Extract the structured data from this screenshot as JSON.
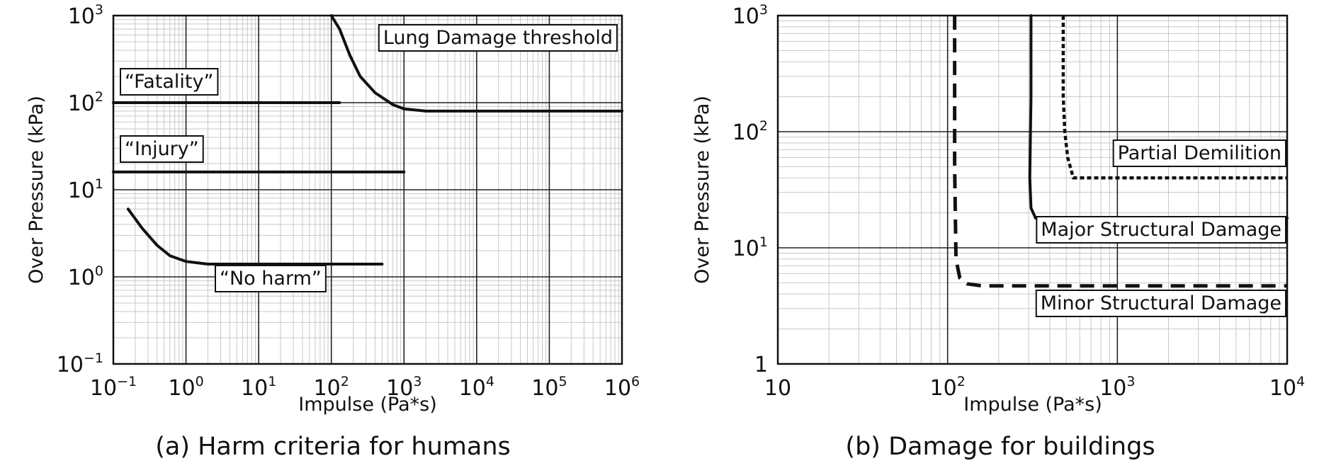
{
  "chart_data": [
    {
      "type": "line",
      "caption": "(a) Harm criteria for humans",
      "xlabel": "Impulse (Pa*s)",
      "ylabel": "Over Pressure (kPa)",
      "x_scale": "log",
      "y_scale": "log",
      "xlim": [
        0.1,
        1000000
      ],
      "ylim": [
        0.1,
        1000
      ],
      "grid": true,
      "x_ticks": [
        {
          "base": "10",
          "exp": "−1"
        },
        {
          "base": "10",
          "exp": "0"
        },
        {
          "base": "10",
          "exp": "1"
        },
        {
          "base": "10",
          "exp": "2"
        },
        {
          "base": "10",
          "exp": "3"
        },
        {
          "base": "10",
          "exp": "4"
        },
        {
          "base": "10",
          "exp": "5"
        },
        {
          "base": "10",
          "exp": "6"
        }
      ],
      "y_ticks": [
        {
          "base": "10",
          "exp": "−1"
        },
        {
          "base": "10",
          "exp": "0"
        },
        {
          "base": "10",
          "exp": "1"
        },
        {
          "base": "10",
          "exp": "2"
        },
        {
          "base": "10",
          "exp": "3"
        }
      ],
      "series": [
        {
          "label": "Lung Damage threshold",
          "style": "solid",
          "x": [
            100,
            130,
            180,
            250,
            400,
            700,
            1000,
            2000,
            5000,
            10000,
            100000,
            1000000
          ],
          "y": [
            1000,
            700,
            350,
            200,
            130,
            95,
            85,
            80,
            80,
            80,
            80,
            80
          ]
        },
        {
          "label": "“Fatality”",
          "style": "solid",
          "x": [
            0.1,
            130
          ],
          "y": [
            100,
            100
          ]
        },
        {
          "label": "“Injury”",
          "style": "solid",
          "x": [
            0.1,
            1000
          ],
          "y": [
            16,
            16
          ]
        },
        {
          "label": "“No harm”",
          "style": "solid",
          "x": [
            0.16,
            0.25,
            0.4,
            0.6,
            1.0,
            2.0,
            10,
            100,
            500
          ],
          "y": [
            6.0,
            3.6,
            2.3,
            1.75,
            1.5,
            1.4,
            1.4,
            1.4,
            1.4
          ]
        }
      ]
    },
    {
      "type": "line",
      "caption": "(b) Damage for buildings",
      "xlabel": "Impulse (Pa*s)",
      "ylabel": "Over Pressure (kPa)",
      "x_scale": "log",
      "y_scale": "log",
      "xlim": [
        10,
        10000
      ],
      "ylim": [
        1,
        1000
      ],
      "grid": true,
      "x_ticks": [
        {
          "base": "10",
          "exp": ""
        },
        {
          "base": "10",
          "exp": "2"
        },
        {
          "base": "10",
          "exp": "3"
        },
        {
          "base": "10",
          "exp": "4"
        }
      ],
      "y_ticks": [
        {
          "base": "1",
          "exp": ""
        },
        {
          "base": "10",
          "exp": "1"
        },
        {
          "base": "10",
          "exp": "2"
        },
        {
          "base": "10",
          "exp": "3"
        }
      ],
      "series": [
        {
          "label": "Partial Demilition",
          "style": "dotted",
          "x": [
            480,
            480,
            490,
            510,
            550,
            700,
            1000,
            10000
          ],
          "y": [
            1000,
            200,
            100,
            60,
            40,
            40,
            40,
            40
          ]
        },
        {
          "label": "Major Structural Damage",
          "style": "solid",
          "x": [
            310,
            310,
            305,
            310,
            330,
            400,
            1000,
            10000
          ],
          "y": [
            1000,
            200,
            40,
            22,
            18,
            18,
            18,
            18
          ]
        },
        {
          "label": "Minor Structural Damage",
          "style": "dashed",
          "x": [
            110,
            110,
            112,
            118,
            130,
            160,
            1000,
            10000
          ],
          "y": [
            1000,
            50,
            8,
            5.5,
            4.9,
            4.7,
            4.7,
            4.7
          ]
        }
      ]
    }
  ]
}
